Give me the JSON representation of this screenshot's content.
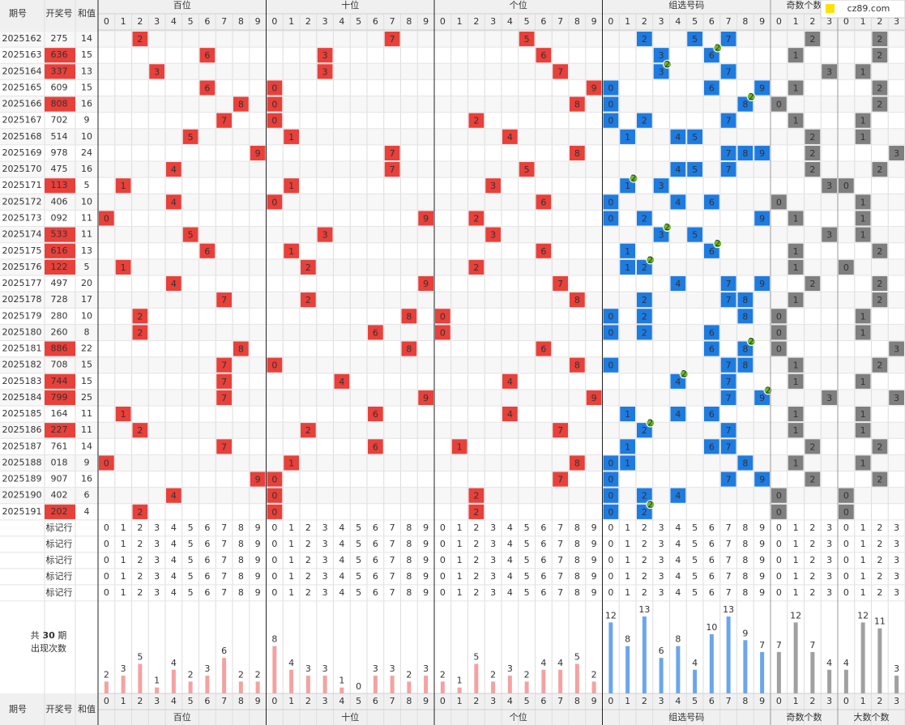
{
  "logo": "cz89.com",
  "header": {
    "period": "期号",
    "number": "开奖号",
    "sum": "和值"
  },
  "sections": [
    {
      "label": "百位",
      "color": "#e8403a",
      "bar_color": "#f3a2a2",
      "digits": [
        0,
        1,
        2,
        3,
        4,
        5,
        6,
        7,
        8,
        9
      ],
      "stats": [
        2,
        3,
        5,
        1,
        4,
        2,
        3,
        6,
        2,
        2
      ]
    },
    {
      "label": "十位",
      "color": "#e8403a",
      "bar_color": "#f3a2a2",
      "digits": [
        0,
        1,
        2,
        3,
        4,
        5,
        6,
        7,
        8,
        9
      ],
      "stats": [
        8,
        4,
        3,
        3,
        1,
        0,
        3,
        3,
        2,
        3
      ]
    },
    {
      "label": "个位",
      "color": "#e8403a",
      "bar_color": "#f3a2a2",
      "digits": [
        0,
        1,
        2,
        3,
        4,
        5,
        6,
        7,
        8,
        9
      ],
      "stats": [
        2,
        1,
        5,
        2,
        3,
        2,
        4,
        4,
        5,
        2
      ]
    },
    {
      "label": "组选号码",
      "color": "#1e7be0",
      "bar_color": "#6aa6ec",
      "digits": [
        0,
        1,
        2,
        3,
        4,
        5,
        6,
        7,
        8,
        9
      ],
      "stats": [
        12,
        8,
        13,
        6,
        8,
        4,
        10,
        13,
        9,
        7
      ]
    },
    {
      "label": "奇数个数",
      "color": "#7f7f7f",
      "bar_color": "#a0a0a0",
      "digits": [
        0,
        1,
        2,
        3
      ],
      "stats": [
        7,
        12,
        7,
        4
      ]
    },
    {
      "label": "大数个数",
      "color": "#7f7f7f",
      "bar_color": "#a0a0a0",
      "digits": [
        0,
        1,
        2,
        3
      ],
      "stats": [
        4,
        12,
        11,
        3
      ]
    }
  ],
  "rows": [
    {
      "period": "2025162",
      "number": "275",
      "sum": 14,
      "digits": [
        2,
        7,
        5
      ],
      "group": [
        2,
        5,
        7
      ],
      "odd": 2,
      "big": 2
    },
    {
      "period": "2025163",
      "number": "636",
      "sum": 15,
      "digits": [
        6,
        3,
        6
      ],
      "group": [
        3,
        6
      ],
      "odd": 1,
      "big": 2,
      "pair": {
        "digit": 6,
        "count": 2
      }
    },
    {
      "period": "2025164",
      "number": "337",
      "sum": 13,
      "digits": [
        3,
        3,
        7
      ],
      "group": [
        3,
        7
      ],
      "odd": 3,
      "big": 1,
      "pair": {
        "digit": 3,
        "count": 2
      }
    },
    {
      "period": "2025165",
      "number": "609",
      "sum": 15,
      "digits": [
        6,
        0,
        9
      ],
      "group": [
        0,
        6,
        9
      ],
      "odd": 1,
      "big": 2
    },
    {
      "period": "2025166",
      "number": "808",
      "sum": 16,
      "digits": [
        8,
        0,
        8
      ],
      "group": [
        0,
        8
      ],
      "odd": 0,
      "big": 2,
      "pair": {
        "digit": 8,
        "count": 2
      }
    },
    {
      "period": "2025167",
      "number": "702",
      "sum": 9,
      "digits": [
        7,
        0,
        2
      ],
      "group": [
        0,
        2,
        7
      ],
      "odd": 1,
      "big": 1
    },
    {
      "period": "2025168",
      "number": "514",
      "sum": 10,
      "digits": [
        5,
        1,
        4
      ],
      "group": [
        1,
        4,
        5
      ],
      "odd": 2,
      "big": 1
    },
    {
      "period": "2025169",
      "number": "978",
      "sum": 24,
      "digits": [
        9,
        7,
        8
      ],
      "group": [
        7,
        8,
        9
      ],
      "odd": 2,
      "big": 3
    },
    {
      "period": "2025170",
      "number": "475",
      "sum": 16,
      "digits": [
        4,
        7,
        5
      ],
      "group": [
        4,
        5,
        7
      ],
      "odd": 2,
      "big": 2
    },
    {
      "period": "2025171",
      "number": "113",
      "sum": 5,
      "digits": [
        1,
        1,
        3
      ],
      "group": [
        1,
        3
      ],
      "odd": 3,
      "big": 0,
      "pair": {
        "digit": 1,
        "count": 2
      }
    },
    {
      "period": "2025172",
      "number": "406",
      "sum": 10,
      "digits": [
        4,
        0,
        6
      ],
      "group": [
        0,
        4,
        6
      ],
      "odd": 0,
      "big": 1
    },
    {
      "period": "2025173",
      "number": "092",
      "sum": 11,
      "digits": [
        0,
        9,
        2
      ],
      "group": [
        0,
        2,
        9
      ],
      "odd": 1,
      "big": 1
    },
    {
      "period": "2025174",
      "number": "533",
      "sum": 11,
      "digits": [
        5,
        3,
        3
      ],
      "group": [
        3,
        5
      ],
      "odd": 3,
      "big": 1,
      "pair": {
        "digit": 3,
        "count": 2
      }
    },
    {
      "period": "2025175",
      "number": "616",
      "sum": 13,
      "digits": [
        6,
        1,
        6
      ],
      "group": [
        1,
        6
      ],
      "odd": 1,
      "big": 2,
      "pair": {
        "digit": 6,
        "count": 2
      }
    },
    {
      "period": "2025176",
      "number": "122",
      "sum": 5,
      "digits": [
        1,
        2,
        2
      ],
      "group": [
        1,
        2
      ],
      "odd": 1,
      "big": 0,
      "pair": {
        "digit": 2,
        "count": 2
      }
    },
    {
      "period": "2025177",
      "number": "497",
      "sum": 20,
      "digits": [
        4,
        9,
        7
      ],
      "group": [
        4,
        7,
        9
      ],
      "odd": 2,
      "big": 2
    },
    {
      "period": "2025178",
      "number": "728",
      "sum": 17,
      "digits": [
        7,
        2,
        8
      ],
      "group": [
        2,
        7,
        8
      ],
      "odd": 1,
      "big": 2
    },
    {
      "period": "2025179",
      "number": "280",
      "sum": 10,
      "digits": [
        2,
        8,
        0
      ],
      "group": [
        0,
        2,
        8
      ],
      "odd": 0,
      "big": 1
    },
    {
      "period": "2025180",
      "number": "260",
      "sum": 8,
      "digits": [
        2,
        6,
        0
      ],
      "group": [
        0,
        2,
        6
      ],
      "odd": 0,
      "big": 1
    },
    {
      "period": "2025181",
      "number": "886",
      "sum": 22,
      "digits": [
        8,
        8,
        6
      ],
      "group": [
        6,
        8
      ],
      "odd": 0,
      "big": 3,
      "pair": {
        "digit": 8,
        "count": 2
      }
    },
    {
      "period": "2025182",
      "number": "708",
      "sum": 15,
      "digits": [
        7,
        0,
        8
      ],
      "group": [
        0,
        7,
        8
      ],
      "odd": 1,
      "big": 2
    },
    {
      "period": "2025183",
      "number": "744",
      "sum": 15,
      "digits": [
        7,
        4,
        4
      ],
      "group": [
        4,
        7
      ],
      "odd": 1,
      "big": 1,
      "pair": {
        "digit": 4,
        "count": 2
      }
    },
    {
      "period": "2025184",
      "number": "799",
      "sum": 25,
      "digits": [
        7,
        9,
        9
      ],
      "group": [
        7,
        9
      ],
      "odd": 3,
      "big": 3,
      "pair": {
        "digit": 9,
        "count": 2
      }
    },
    {
      "period": "2025185",
      "number": "164",
      "sum": 11,
      "digits": [
        1,
        6,
        4
      ],
      "group": [
        1,
        4,
        6
      ],
      "odd": 1,
      "big": 1
    },
    {
      "period": "2025186",
      "number": "227",
      "sum": 11,
      "digits": [
        2,
        2,
        7
      ],
      "group": [
        2,
        7
      ],
      "odd": 1,
      "big": 1,
      "pair": {
        "digit": 2,
        "count": 2
      }
    },
    {
      "period": "2025187",
      "number": "761",
      "sum": 14,
      "digits": [
        7,
        6,
        1
      ],
      "group": [
        1,
        6,
        7
      ],
      "odd": 2,
      "big": 2
    },
    {
      "period": "2025188",
      "number": "018",
      "sum": 9,
      "digits": [
        0,
        1,
        8
      ],
      "group": [
        0,
        1,
        8
      ],
      "odd": 1,
      "big": 1
    },
    {
      "period": "2025189",
      "number": "907",
      "sum": 16,
      "digits": [
        9,
        0,
        7
      ],
      "group": [
        0,
        7,
        9
      ],
      "odd": 2,
      "big": 2
    },
    {
      "period": "2025190",
      "number": "402",
      "sum": 6,
      "digits": [
        4,
        0,
        2
      ],
      "group": [
        0,
        2,
        4
      ],
      "odd": 0,
      "big": 0
    },
    {
      "period": "2025191",
      "number": "202",
      "sum": 4,
      "digits": [
        2,
        0,
        2
      ],
      "group": [
        0,
        2
      ],
      "odd": 0,
      "big": 0,
      "pair": {
        "digit": 2,
        "count": 2
      }
    }
  ],
  "marker_rows": [
    "标记行",
    "标记行",
    "标记行",
    "标记行",
    "标记行"
  ],
  "stats_label": {
    "text1": "共",
    "count": 30,
    "text2": "期",
    "text3": "出现次数"
  }
}
